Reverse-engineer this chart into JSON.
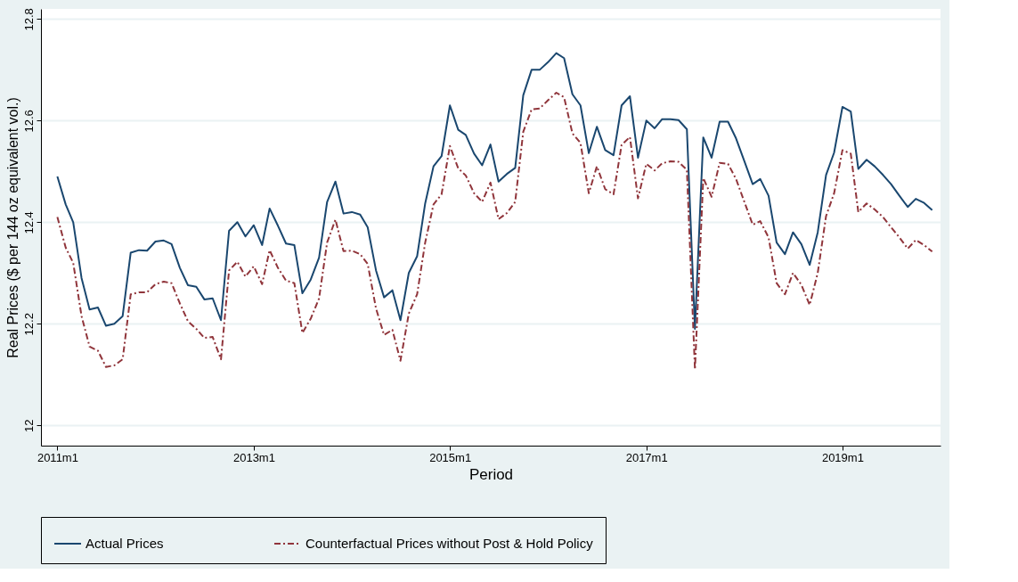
{
  "chart_data": {
    "type": "line",
    "xlabel": "Period",
    "ylabel": "Real Prices ($ per 144 oz equivalent vol.)",
    "x": [
      "2011-01",
      "2011-02",
      "2011-03",
      "2011-04",
      "2011-05",
      "2011-06",
      "2011-07",
      "2011-08",
      "2011-09",
      "2011-10",
      "2011-11",
      "2011-12",
      "2012-01",
      "2012-02",
      "2012-03",
      "2012-04",
      "2012-05",
      "2012-06",
      "2012-07",
      "2012-08",
      "2012-09",
      "2012-10",
      "2012-11",
      "2012-12",
      "2013-01",
      "2013-02",
      "2013-03",
      "2013-04",
      "2013-05",
      "2013-06",
      "2013-07",
      "2013-08",
      "2013-09",
      "2013-10",
      "2013-11",
      "2013-12",
      "2014-01",
      "2014-02",
      "2014-03",
      "2014-04",
      "2014-05",
      "2014-06",
      "2014-07",
      "2014-08",
      "2014-09",
      "2014-10",
      "2014-11",
      "2014-12",
      "2015-01",
      "2015-02",
      "2015-03",
      "2015-04",
      "2015-05",
      "2015-06",
      "2015-07",
      "2015-08",
      "2015-09",
      "2015-10",
      "2015-11",
      "2015-12",
      "2016-01",
      "2016-02",
      "2016-03",
      "2016-04",
      "2016-05",
      "2016-06",
      "2016-07",
      "2016-08",
      "2016-09",
      "2016-10",
      "2016-11",
      "2016-12",
      "2017-01",
      "2017-02",
      "2017-03",
      "2017-04",
      "2017-05",
      "2017-06",
      "2017-07",
      "2017-08",
      "2017-09",
      "2017-10",
      "2017-11",
      "2017-12",
      "2018-01",
      "2018-02",
      "2018-03",
      "2018-04",
      "2018-05",
      "2018-06",
      "2018-07",
      "2018-08",
      "2018-09",
      "2018-10",
      "2018-11",
      "2018-12",
      "2019-01",
      "2019-02",
      "2019-03",
      "2019-04",
      "2019-05",
      "2019-06",
      "2019-07",
      "2019-08",
      "2019-09",
      "2019-10",
      "2019-11",
      "2019-12"
    ],
    "series": [
      {
        "name": "Actual Prices",
        "color": "#1a476f",
        "line_style": "solid",
        "values": [
          12.49,
          12.435,
          12.4,
          12.29,
          12.228,
          12.232,
          12.196,
          12.2,
          12.215,
          12.34,
          12.345,
          12.344,
          12.362,
          12.364,
          12.357,
          12.31,
          12.276,
          12.273,
          12.248,
          12.25,
          12.207,
          12.383,
          12.4,
          12.372,
          12.394,
          12.355,
          12.427,
          12.393,
          12.358,
          12.355,
          12.26,
          12.287,
          12.33,
          12.44,
          12.48,
          12.417,
          12.42,
          12.415,
          12.39,
          12.305,
          12.252,
          12.266,
          12.207,
          12.3,
          12.333,
          12.437,
          12.51,
          12.53,
          12.63,
          12.582,
          12.572,
          12.535,
          12.512,
          12.553,
          12.48,
          12.495,
          12.507,
          12.65,
          12.7,
          12.7,
          12.715,
          12.733,
          12.723,
          12.652,
          12.63,
          12.536,
          12.588,
          12.542,
          12.532,
          12.63,
          12.648,
          12.527,
          12.6,
          12.585,
          12.603,
          12.603,
          12.601,
          12.583,
          12.19,
          12.567,
          12.527,
          12.598,
          12.598,
          12.565,
          12.52,
          12.475,
          12.485,
          12.452,
          12.36,
          12.337,
          12.38,
          12.357,
          12.316,
          12.38,
          12.493,
          12.537,
          12.627,
          12.618,
          12.505,
          12.523,
          12.51,
          12.493,
          12.475,
          12.452,
          12.43,
          12.446,
          12.438,
          12.424
        ]
      },
      {
        "name": "Counterfactual Prices without Post & Hold Policy",
        "color": "#90353b",
        "line_style": "dashed",
        "values": [
          12.41,
          12.35,
          12.32,
          12.215,
          12.155,
          12.147,
          12.115,
          12.118,
          12.13,
          12.258,
          12.262,
          12.262,
          12.278,
          12.283,
          12.28,
          12.24,
          12.205,
          12.19,
          12.172,
          12.174,
          12.13,
          12.305,
          12.322,
          12.293,
          12.313,
          12.278,
          12.345,
          12.31,
          12.285,
          12.28,
          12.182,
          12.21,
          12.25,
          12.36,
          12.405,
          12.343,
          12.344,
          12.337,
          12.318,
          12.23,
          12.178,
          12.188,
          12.127,
          12.22,
          12.258,
          12.36,
          12.435,
          12.455,
          12.55,
          12.506,
          12.492,
          12.457,
          12.44,
          12.478,
          12.406,
          12.418,
          12.44,
          12.578,
          12.622,
          12.624,
          12.64,
          12.655,
          12.646,
          12.575,
          12.556,
          12.457,
          12.51,
          12.465,
          12.455,
          12.552,
          12.568,
          12.447,
          12.515,
          12.502,
          12.516,
          12.52,
          12.519,
          12.503,
          12.11,
          12.487,
          12.45,
          12.517,
          12.515,
          12.485,
          12.44,
          12.395,
          12.402,
          12.37,
          12.28,
          12.258,
          12.3,
          12.277,
          12.237,
          12.3,
          12.412,
          12.457,
          12.542,
          12.535,
          12.42,
          12.437,
          12.425,
          12.41,
          12.39,
          12.37,
          12.348,
          12.365,
          12.355,
          12.342
        ]
      }
    ],
    "xlim": [
      "2010-11",
      "2020-01"
    ],
    "xticks": [
      {
        "value": "2011-01",
        "label": "2011m1"
      },
      {
        "value": "2013-01",
        "label": "2013m1"
      },
      {
        "value": "2015-01",
        "label": "2015m1"
      },
      {
        "value": "2017-01",
        "label": "2017m1"
      },
      {
        "value": "2019-01",
        "label": "2019m1"
      }
    ],
    "ylim": [
      11.96,
      12.82
    ],
    "yticks": [
      12,
      12.2,
      12.4,
      12.6,
      12.8
    ],
    "grid": "y",
    "legend": "bottom"
  }
}
